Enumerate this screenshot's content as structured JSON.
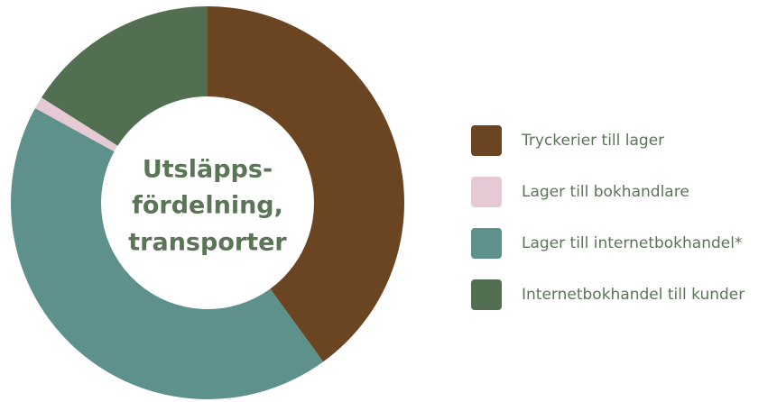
{
  "chart_data": {
    "type": "pie",
    "donut": true,
    "title": [
      "Utsläpps-",
      "fördelning,",
      "transporter"
    ],
    "categories": [
      "Tryckerier till lager",
      "Lager till bokhandlare",
      "Lager till internetbokhandel*",
      "Internetbokhandel till kunder"
    ],
    "values": [
      40,
      1,
      43,
      16
    ],
    "colors": [
      "#6b4522",
      "#e5cad6",
      "#5f918c",
      "#536f51"
    ]
  }
}
